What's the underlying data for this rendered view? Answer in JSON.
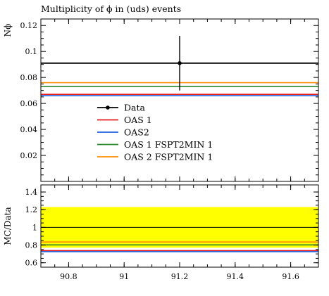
{
  "chart_data": [
    {
      "type": "scatter",
      "title": "Multiplicity of ϕ in (uds) events",
      "xlabel": "",
      "ylabel": "Nϕ",
      "xlim": [
        90.7,
        91.7
      ],
      "ylim": [
        0,
        0.125
      ],
      "y_ticks": [
        0.02,
        0.04,
        0.06,
        0.08,
        0.1,
        0.12
      ],
      "y_tick_labels": [
        "0.02",
        "0.04",
        "0.06",
        "0.08",
        "0.1",
        "0.12"
      ],
      "data": {
        "name": "Data",
        "x": 91.2,
        "y": 0.091,
        "yerr_low": 0.021,
        "yerr_high": 0.021,
        "color": "#000000"
      },
      "series": [
        {
          "name": "OAS 1",
          "value": 0.067,
          "color": "#e41a1c"
        },
        {
          "name": "OAS2",
          "value": 0.066,
          "color": "#1f5fe0"
        },
        {
          "name": "OAS 1 FSPT2MIN 1",
          "value": 0.073,
          "color": "#2a8a2a"
        },
        {
          "name": "OAS 2 FSPT2MIN 1",
          "value": 0.076,
          "color": "#ff8c00"
        }
      ],
      "legend": "center",
      "grid": false
    },
    {
      "type": "line",
      "title": "",
      "xlabel": "",
      "ylabel": "MC/Data",
      "xlim": [
        90.7,
        91.7
      ],
      "ylim": [
        0.55,
        1.48
      ],
      "x_ticks": [
        90.8,
        91,
        91.2,
        91.4,
        91.6
      ],
      "x_tick_labels": [
        "90.8",
        "91",
        "91.2",
        "91.4",
        "91.6"
      ],
      "y_ticks": [
        0.6,
        0.8,
        1,
        1.2,
        1.4
      ],
      "y_tick_labels": [
        "0.6",
        "0.8",
        "1",
        "1.2",
        "1.4"
      ],
      "band": {
        "low": 0.77,
        "high": 1.23,
        "color": "#ffff00"
      },
      "reference": 1.0,
      "series": [
        {
          "name": "OAS 1",
          "value": 0.737,
          "color": "#e41a1c"
        },
        {
          "name": "OAS2",
          "value": 0.725,
          "color": "#1f5fe0"
        },
        {
          "name": "OAS 1 FSPT2MIN 1",
          "value": 0.802,
          "color": "#2a8a2a"
        },
        {
          "name": "OAS 2 FSPT2MIN 1",
          "value": 0.835,
          "color": "#ff8c00"
        }
      ],
      "grid": false
    }
  ]
}
